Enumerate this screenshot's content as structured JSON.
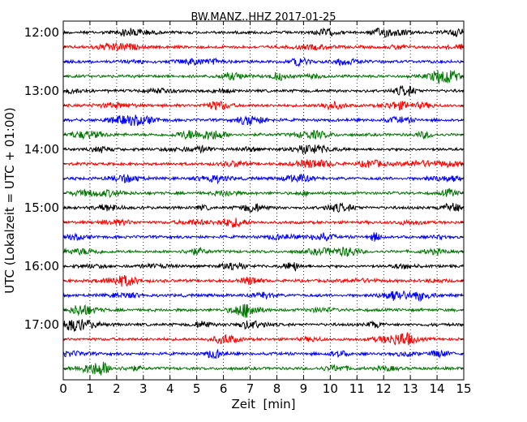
{
  "chart_data": {
    "type": "line",
    "title": "BW.MANZ..HHZ 2017-01-25",
    "xlabel": "Zeit  [min]",
    "ylabel": "UTC (Lokalzeit = UTC + 01:00)",
    "xlim": [
      0,
      15
    ],
    "x_ticks": [
      0,
      1,
      2,
      3,
      4,
      5,
      6,
      7,
      8,
      9,
      10,
      11,
      12,
      13,
      14,
      15
    ],
    "x_tick_labels": [
      "0",
      "1",
      "2",
      "3",
      "4",
      "5",
      "6",
      "7",
      "8",
      "9",
      "10",
      "11",
      "12",
      "13",
      "14",
      "15"
    ],
    "y_tick_labels": [
      "12:00",
      "13:00",
      "14:00",
      "15:00",
      "16:00",
      "17:00"
    ],
    "grid": "vertical dotted lines at each minute",
    "trace_interval_minutes": 15,
    "start_time": "12:00",
    "trace_start_times": [
      "12:00",
      "12:15",
      "12:30",
      "12:45",
      "13:00",
      "13:15",
      "13:30",
      "13:45",
      "14:00",
      "14:15",
      "14:30",
      "14:45",
      "15:00",
      "15:15",
      "15:30",
      "15:45",
      "16:00",
      "16:15",
      "16:30",
      "16:45",
      "17:00",
      "17:15",
      "17:30",
      "17:45"
    ],
    "color_cycle": [
      "#000000",
      "#ff0000",
      "#0000ff",
      "#007700"
    ]
  }
}
